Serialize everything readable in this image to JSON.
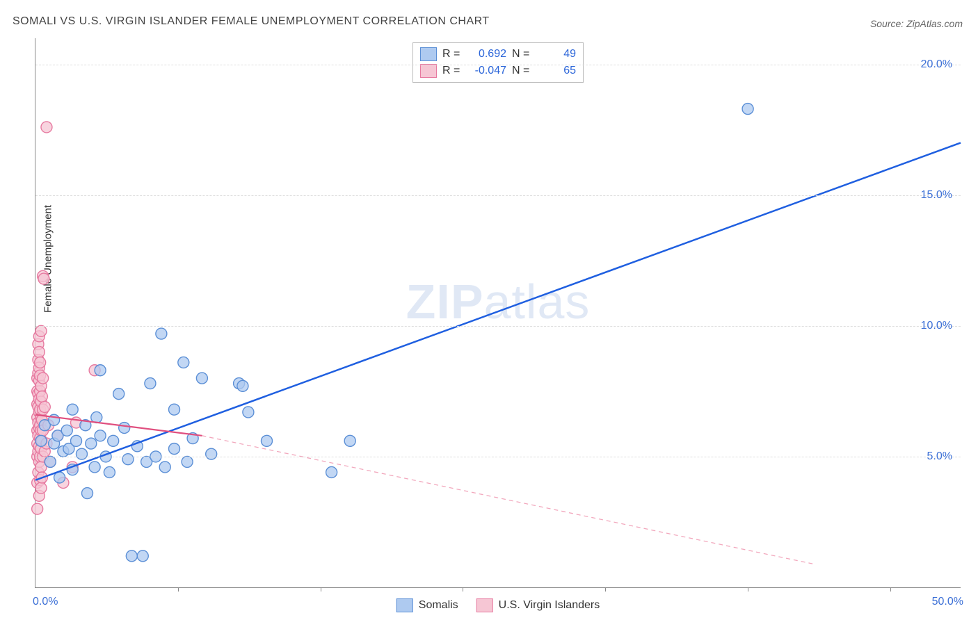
{
  "title": "SOMALI VS U.S. VIRGIN ISLANDER FEMALE UNEMPLOYMENT CORRELATION CHART",
  "source": "Source: ZipAtlas.com",
  "ylabel": "Female Unemployment",
  "watermark_zip": "ZIP",
  "watermark_atlas": "atlas",
  "chart": {
    "type": "scatter",
    "xlim": [
      0,
      50
    ],
    "ylim": [
      0,
      21
    ],
    "xticks": [
      0,
      50
    ],
    "xtick_labels": [
      "0.0%",
      "50.0%"
    ],
    "yticks": [
      5,
      10,
      15,
      20
    ],
    "ytick_labels": [
      "5.0%",
      "10.0%",
      "15.0%",
      "20.0%"
    ],
    "xgrid_minor": [
      7.7,
      15.4,
      23.1,
      30.8,
      38.5,
      46.2
    ],
    "background_color": "#ffffff",
    "grid_color": "#dddddd",
    "axis_color": "#888888",
    "marker_radius": 8,
    "marker_stroke_width": 1.4,
    "series": [
      {
        "name": "Somalis",
        "fill": "#aecaf0",
        "stroke": "#5b8fd6",
        "R": "0.692",
        "N": "49",
        "trend": {
          "x1": 0,
          "y1": 4.1,
          "x2": 50,
          "y2": 17.0,
          "color": "#1f5fe0",
          "width": 2.5,
          "dash": "none"
        },
        "points": [
          [
            0.3,
            5.6
          ],
          [
            0.5,
            6.2
          ],
          [
            0.8,
            4.8
          ],
          [
            1.0,
            5.5
          ],
          [
            1.0,
            6.4
          ],
          [
            1.2,
            5.8
          ],
          [
            1.3,
            4.2
          ],
          [
            1.5,
            5.2
          ],
          [
            1.7,
            6.0
          ],
          [
            1.8,
            5.3
          ],
          [
            2.0,
            4.5
          ],
          [
            2.0,
            6.8
          ],
          [
            2.2,
            5.6
          ],
          [
            2.5,
            5.1
          ],
          [
            2.7,
            6.2
          ],
          [
            2.8,
            3.6
          ],
          [
            3.0,
            5.5
          ],
          [
            3.2,
            4.6
          ],
          [
            3.3,
            6.5
          ],
          [
            3.5,
            5.8
          ],
          [
            3.8,
            5.0
          ],
          [
            4.0,
            4.4
          ],
          [
            4.2,
            5.6
          ],
          [
            4.5,
            7.4
          ],
          [
            4.8,
            6.1
          ],
          [
            5.0,
            4.9
          ],
          [
            5.2,
            1.2
          ],
          [
            5.8,
            1.2
          ],
          [
            5.5,
            5.4
          ],
          [
            6.0,
            4.8
          ],
          [
            6.2,
            7.8
          ],
          [
            6.5,
            5.0
          ],
          [
            6.8,
            9.7
          ],
          [
            7.0,
            4.6
          ],
          [
            7.5,
            5.3
          ],
          [
            7.5,
            6.8
          ],
          [
            8.0,
            8.6
          ],
          [
            8.2,
            4.8
          ],
          [
            8.5,
            5.7
          ],
          [
            9.0,
            8.0
          ],
          [
            9.5,
            5.1
          ],
          [
            11.0,
            7.8
          ],
          [
            11.2,
            7.7
          ],
          [
            11.5,
            6.7
          ],
          [
            12.5,
            5.6
          ],
          [
            16.0,
            4.4
          ],
          [
            17.0,
            5.6
          ],
          [
            38.5,
            18.3
          ],
          [
            3.5,
            8.3
          ]
        ]
      },
      {
        "name": "U.S. Virgin Islanders",
        "fill": "#f6c6d4",
        "stroke": "#e77aa0",
        "R": "-0.047",
        "N": "65",
        "trend": {
          "x1": 0,
          "y1": 6.6,
          "x2": 9.0,
          "y2": 5.8,
          "color": "#e04f7f",
          "width": 2.2,
          "dash": "none"
        },
        "trend_ext": {
          "x1": 9.0,
          "y1": 5.8,
          "x2": 42,
          "y2": 0.9,
          "color": "#f2a8bd",
          "width": 1.3,
          "dash": "6,5"
        },
        "points": [
          [
            0.1,
            3.0
          ],
          [
            0.1,
            4.0
          ],
          [
            0.1,
            5.0
          ],
          [
            0.1,
            5.5
          ],
          [
            0.1,
            6.0
          ],
          [
            0.1,
            6.5
          ],
          [
            0.1,
            7.0
          ],
          [
            0.1,
            7.5
          ],
          [
            0.1,
            8.0
          ],
          [
            0.15,
            4.4
          ],
          [
            0.15,
            5.2
          ],
          [
            0.15,
            5.8
          ],
          [
            0.15,
            6.3
          ],
          [
            0.15,
            6.9
          ],
          [
            0.15,
            7.4
          ],
          [
            0.15,
            8.2
          ],
          [
            0.15,
            8.7
          ],
          [
            0.15,
            9.3
          ],
          [
            0.2,
            3.5
          ],
          [
            0.2,
            4.8
          ],
          [
            0.2,
            5.4
          ],
          [
            0.2,
            6.1
          ],
          [
            0.2,
            6.7
          ],
          [
            0.2,
            7.2
          ],
          [
            0.2,
            7.9
          ],
          [
            0.2,
            8.4
          ],
          [
            0.2,
            9.0
          ],
          [
            0.2,
            9.6
          ],
          [
            0.25,
            4.1
          ],
          [
            0.25,
            5.0
          ],
          [
            0.25,
            5.7
          ],
          [
            0.25,
            6.2
          ],
          [
            0.25,
            6.8
          ],
          [
            0.25,
            7.5
          ],
          [
            0.25,
            8.1
          ],
          [
            0.25,
            8.6
          ],
          [
            0.3,
            3.8
          ],
          [
            0.3,
            4.6
          ],
          [
            0.3,
            5.3
          ],
          [
            0.3,
            6.0
          ],
          [
            0.3,
            6.5
          ],
          [
            0.3,
            7.1
          ],
          [
            0.3,
            7.7
          ],
          [
            0.3,
            9.8
          ],
          [
            0.35,
            4.2
          ],
          [
            0.35,
            5.6
          ],
          [
            0.35,
            6.4
          ],
          [
            0.35,
            7.3
          ],
          [
            0.4,
            5.0
          ],
          [
            0.4,
            6.0
          ],
          [
            0.4,
            6.8
          ],
          [
            0.4,
            8.0
          ],
          [
            0.5,
            5.2
          ],
          [
            0.5,
            6.9
          ],
          [
            0.6,
            5.5
          ],
          [
            0.7,
            6.2
          ],
          [
            0.8,
            4.8
          ],
          [
            1.2,
            5.8
          ],
          [
            1.5,
            4.0
          ],
          [
            2.0,
            4.6
          ],
          [
            2.2,
            6.3
          ],
          [
            0.4,
            11.9
          ],
          [
            0.45,
            11.8
          ],
          [
            0.6,
            17.6
          ],
          [
            3.2,
            8.3
          ]
        ]
      }
    ]
  },
  "legend_top": {
    "r_label": "R =",
    "n_label": "N ="
  },
  "legend_bottom": [
    {
      "label": "Somalis",
      "fill": "#aecaf0",
      "stroke": "#5b8fd6"
    },
    {
      "label": "U.S. Virgin Islanders",
      "fill": "#f6c6d4",
      "stroke": "#e77aa0"
    }
  ]
}
